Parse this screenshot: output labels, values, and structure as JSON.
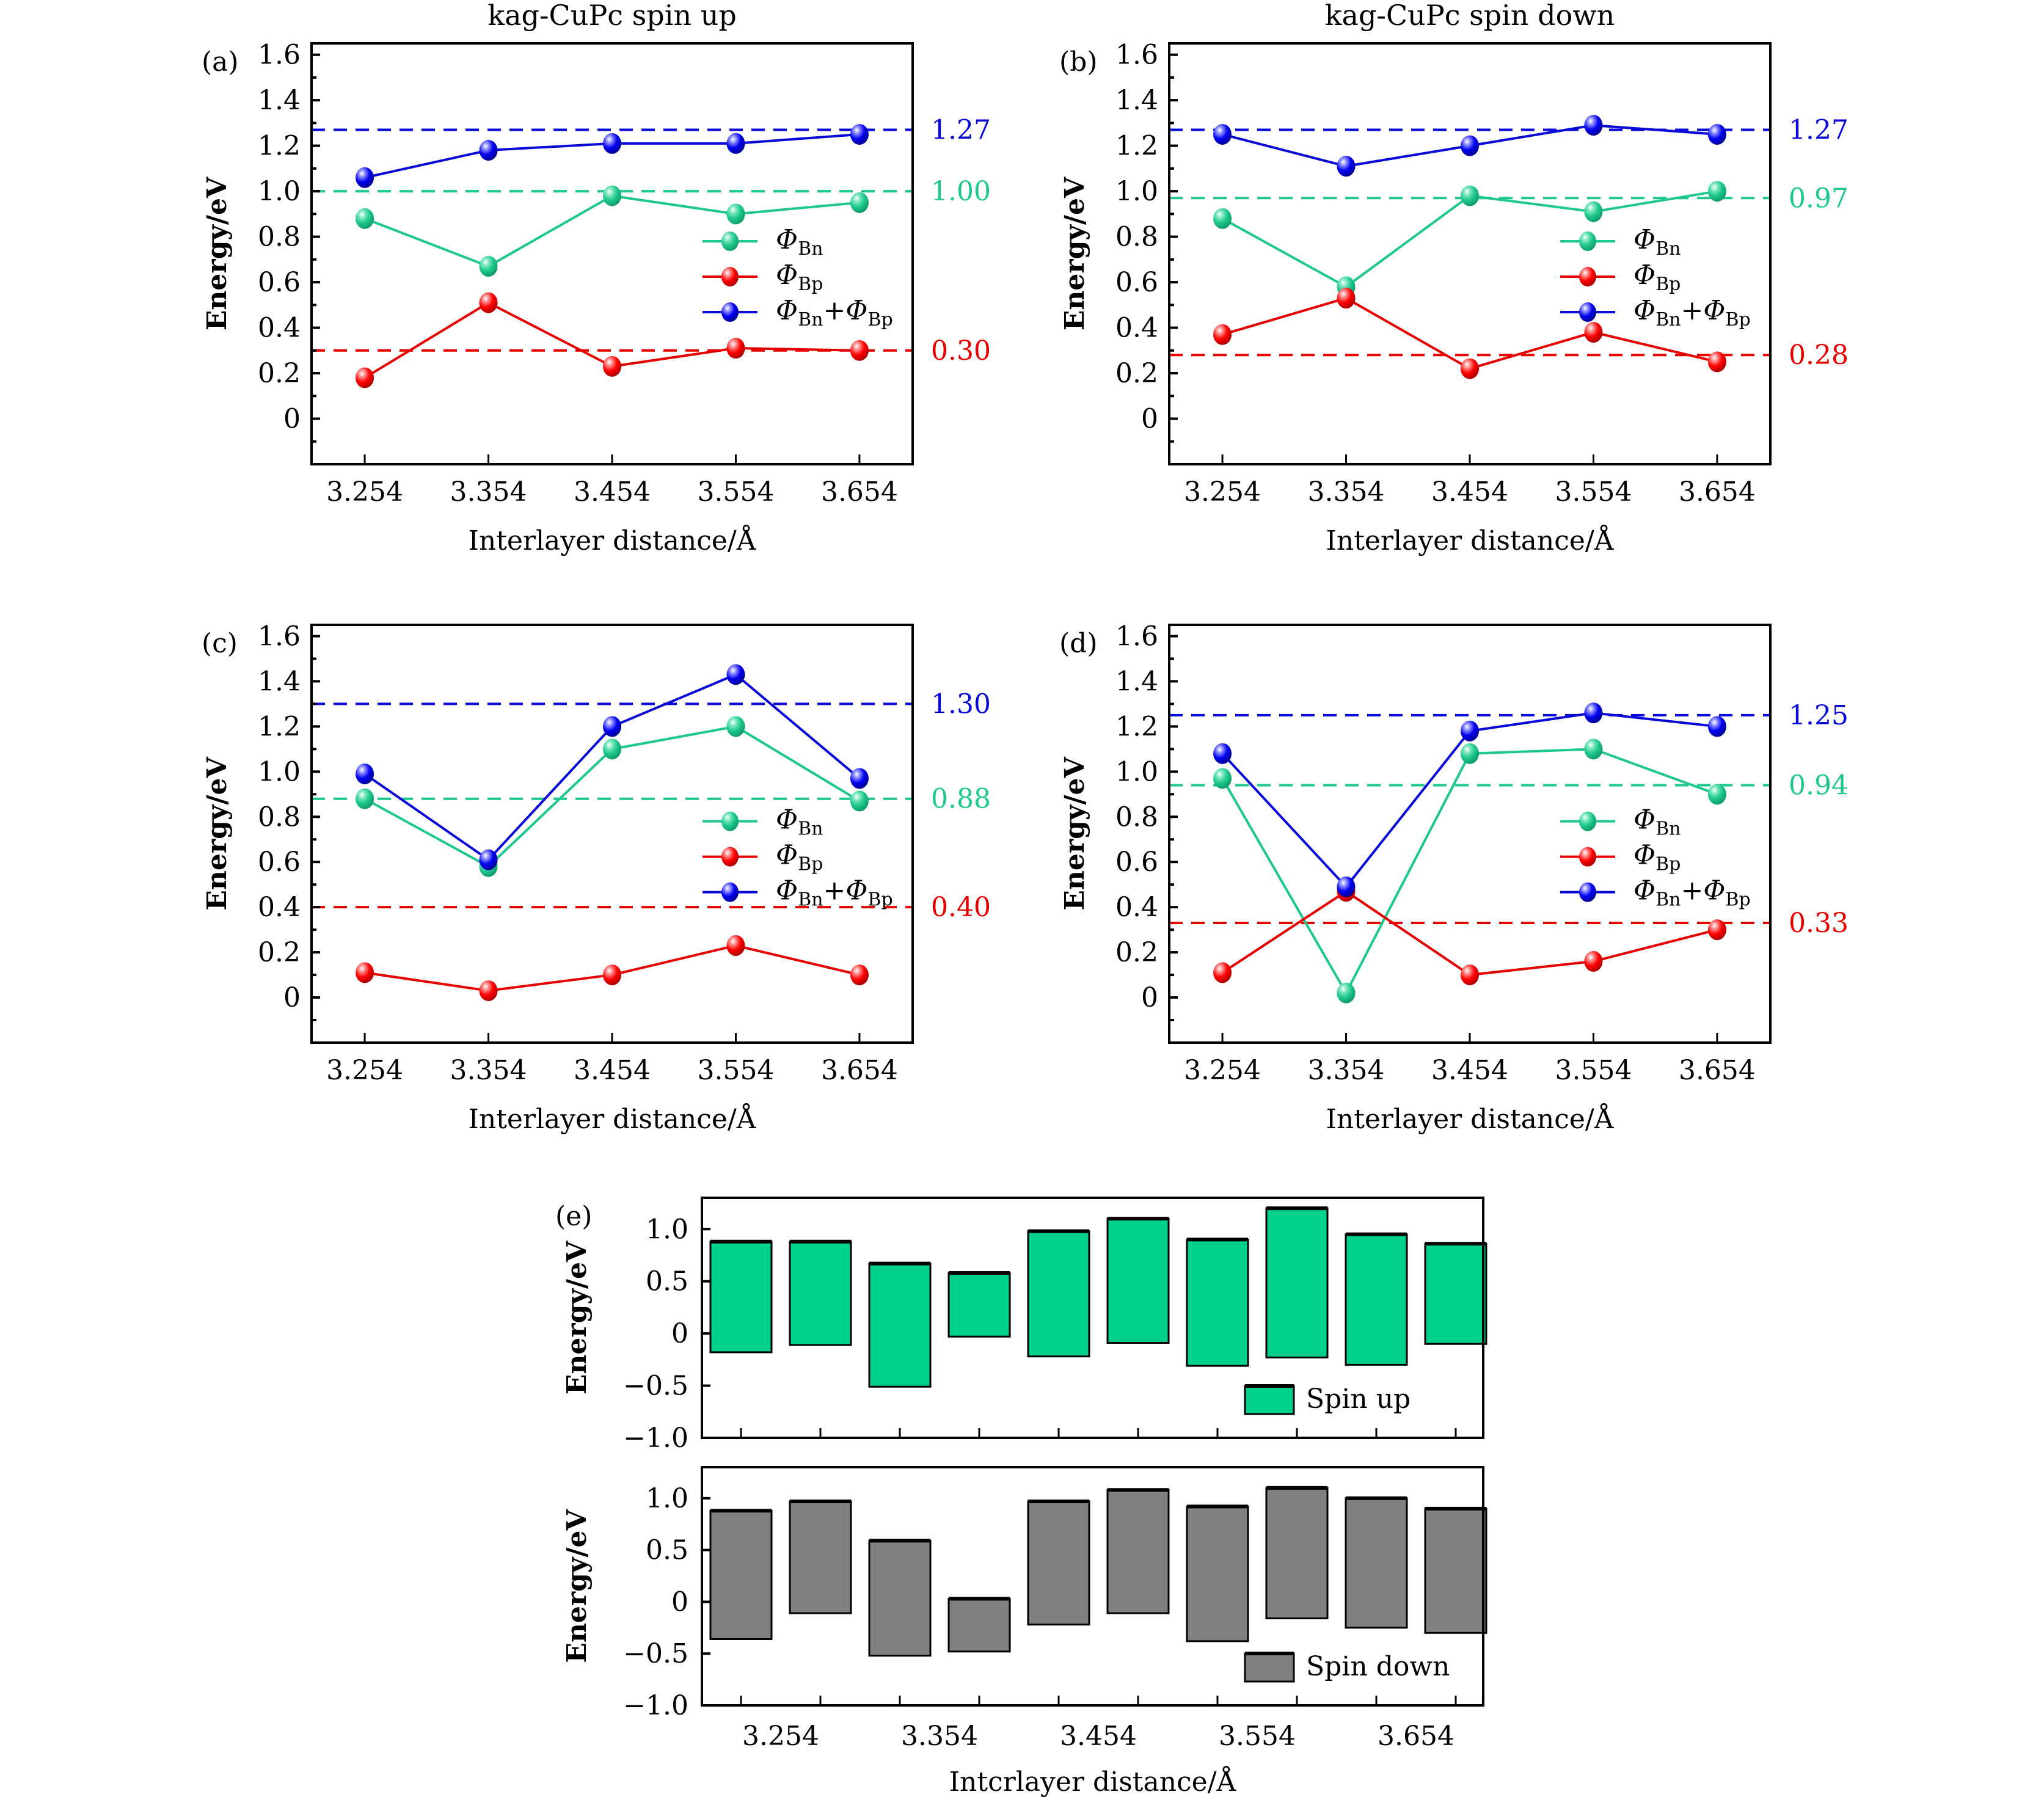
{
  "figure": {
    "colors": {
      "bn": "#1ec88c",
      "bp": "#e60000",
      "sum": "#0a0ad8",
      "spin_up_bar": "#00d18a",
      "spin_down_bar": "#808080",
      "axis": "#000000"
    },
    "legend_labels": {
      "phi": "Φ",
      "bn_sub": "Bn",
      "bp_sub": "Bp",
      "plus": "+"
    }
  },
  "chart_data": [
    {
      "id": "a",
      "type": "line",
      "panel_label": "(a)",
      "title": "kag-CuPc spin up",
      "xlabel": "Interlayer distance/Å",
      "ylabel": "Energy/eV",
      "categories": [
        "3.254",
        "3.354",
        "3.454",
        "3.554",
        "3.654"
      ],
      "yticks": [
        "0",
        "0.2",
        "0.4",
        "0.6",
        "0.8",
        "1.0",
        "1.2",
        "1.4",
        "1.6"
      ],
      "ylim": [
        -0.2,
        1.65
      ],
      "legend_position": "center-right",
      "series": [
        {
          "name": "Φ_Bn",
          "key": "bn",
          "values": [
            0.88,
            0.67,
            0.98,
            0.9,
            0.95
          ]
        },
        {
          "name": "Φ_Bp",
          "key": "bp",
          "values": [
            0.18,
            0.51,
            0.23,
            0.31,
            0.3
          ]
        },
        {
          "name": "Φ_Bn+Φ_Bp",
          "key": "sum",
          "values": [
            1.06,
            1.18,
            1.21,
            1.21,
            1.25
          ]
        }
      ],
      "reference_lines": [
        {
          "key": "sum",
          "value": 1.27,
          "label": "1.27"
        },
        {
          "key": "bn",
          "value": 1.0,
          "label": "1.00"
        },
        {
          "key": "bp",
          "value": 0.3,
          "label": "0.30"
        }
      ]
    },
    {
      "id": "b",
      "type": "line",
      "panel_label": "(b)",
      "title": "kag-CuPc spin down",
      "xlabel": "Interlayer distance/Å",
      "ylabel": "Energy/eV",
      "categories": [
        "3.254",
        "3.354",
        "3.454",
        "3.554",
        "3.654"
      ],
      "yticks": [
        "0",
        "0.2",
        "0.4",
        "0.6",
        "0.8",
        "1.0",
        "1.2",
        "1.4",
        "1.6"
      ],
      "ylim": [
        -0.2,
        1.65
      ],
      "legend_position": "center-right",
      "series": [
        {
          "name": "Φ_Bn",
          "key": "bn",
          "values": [
            0.88,
            0.58,
            0.98,
            0.91,
            1.0
          ]
        },
        {
          "name": "Φ_Bp",
          "key": "bp",
          "values": [
            0.37,
            0.53,
            0.22,
            0.38,
            0.25
          ]
        },
        {
          "name": "Φ_Bn+Φ_Bp",
          "key": "sum",
          "values": [
            1.25,
            1.11,
            1.2,
            1.29,
            1.25
          ]
        }
      ],
      "reference_lines": [
        {
          "key": "sum",
          "value": 1.27,
          "label": "1.27"
        },
        {
          "key": "bn",
          "value": 0.97,
          "label": "0.97"
        },
        {
          "key": "bp",
          "value": 0.28,
          "label": "0.28"
        }
      ]
    },
    {
      "id": "c",
      "type": "line",
      "panel_label": "(c)",
      "title": "",
      "xlabel": "Interlayer distance/Å",
      "ylabel": "Energy/eV",
      "categories": [
        "3.254",
        "3.354",
        "3.454",
        "3.554",
        "3.654"
      ],
      "yticks": [
        "0",
        "0.2",
        "0.4",
        "0.6",
        "0.8",
        "1.0",
        "1.2",
        "1.4",
        "1.6"
      ],
      "ylim": [
        -0.2,
        1.65
      ],
      "legend_position": "center-right",
      "series": [
        {
          "name": "Φ_Bn",
          "key": "bn",
          "values": [
            0.88,
            0.58,
            1.1,
            1.2,
            0.87
          ]
        },
        {
          "name": "Φ_Bp",
          "key": "bp",
          "values": [
            0.11,
            0.03,
            0.1,
            0.23,
            0.1
          ]
        },
        {
          "name": "Φ_Bn+Φ_Bp",
          "key": "sum",
          "values": [
            0.99,
            0.61,
            1.2,
            1.43,
            0.97
          ]
        }
      ],
      "reference_lines": [
        {
          "key": "sum",
          "value": 1.3,
          "label": "1.30"
        },
        {
          "key": "bn",
          "value": 0.88,
          "label": "0.88"
        },
        {
          "key": "bp",
          "value": 0.4,
          "label": "0.40"
        }
      ]
    },
    {
      "id": "d",
      "type": "line",
      "panel_label": "(d)",
      "title": "",
      "xlabel": "Interlayer distance/Å",
      "ylabel": "Energy/eV",
      "categories": [
        "3.254",
        "3.354",
        "3.454",
        "3.554",
        "3.654"
      ],
      "yticks": [
        "0",
        "0.2",
        "0.4",
        "0.6",
        "0.8",
        "1.0",
        "1.2",
        "1.4",
        "1.6"
      ],
      "ylim": [
        -0.2,
        1.65
      ],
      "legend_position": "center-right",
      "series": [
        {
          "name": "Φ_Bn",
          "key": "bn",
          "values": [
            0.97,
            0.02,
            1.08,
            1.1,
            0.9
          ]
        },
        {
          "name": "Φ_Bp",
          "key": "bp",
          "values": [
            0.11,
            0.47,
            0.1,
            0.16,
            0.3
          ]
        },
        {
          "name": "Φ_Bn+Φ_Bp",
          "key": "sum",
          "values": [
            1.08,
            0.49,
            1.18,
            1.26,
            1.2
          ]
        }
      ],
      "reference_lines": [
        {
          "key": "sum",
          "value": 1.25,
          "label": "1.25"
        },
        {
          "key": "bn",
          "value": 0.94,
          "label": "0.94"
        },
        {
          "key": "bp",
          "value": 0.33,
          "label": "0.33"
        }
      ]
    },
    {
      "id": "e",
      "type": "bar",
      "subtype": "floating",
      "panel_label": "(e)",
      "xlabel": "Intcrlayer distance/Å",
      "ylabel": "Energy/eV",
      "categories": [
        "3.254",
        "3.354",
        "3.454",
        "3.554",
        "3.654"
      ],
      "bars_per_category": 2,
      "yticks": [
        "−1.0",
        "−0.5",
        "0",
        "0.5",
        "1.0"
      ],
      "ytick_values": [
        -1.0,
        -0.5,
        0,
        0.5,
        1.0
      ],
      "ylim": [
        -1.0,
        1.3
      ],
      "legend_position": "bottom-right",
      "subplots": [
        {
          "name": "Spin up",
          "key": "spin_up_bar",
          "bars": [
            {
              "low": -0.18,
              "high": 0.88
            },
            {
              "low": -0.11,
              "high": 0.88
            },
            {
              "low": -0.51,
              "high": 0.67
            },
            {
              "low": -0.03,
              "high": 0.58
            },
            {
              "low": -0.22,
              "high": 0.98
            },
            {
              "low": -0.09,
              "high": 1.1
            },
            {
              "low": -0.31,
              "high": 0.9
            },
            {
              "low": -0.23,
              "high": 1.2
            },
            {
              "low": -0.3,
              "high": 0.95
            },
            {
              "low": -0.1,
              "high": 0.86
            }
          ]
        },
        {
          "name": "Spin down",
          "key": "spin_down_bar",
          "bars": [
            {
              "low": -0.36,
              "high": 0.88
            },
            {
              "low": -0.11,
              "high": 0.97
            },
            {
              "low": -0.52,
              "high": 0.59
            },
            {
              "low": -0.48,
              "high": 0.03
            },
            {
              "low": -0.22,
              "high": 0.97
            },
            {
              "low": -0.11,
              "high": 1.08
            },
            {
              "low": -0.38,
              "high": 0.92
            },
            {
              "low": -0.16,
              "high": 1.1
            },
            {
              "low": -0.25,
              "high": 1.0
            },
            {
              "low": -0.3,
              "high": 0.9
            }
          ]
        }
      ]
    }
  ]
}
